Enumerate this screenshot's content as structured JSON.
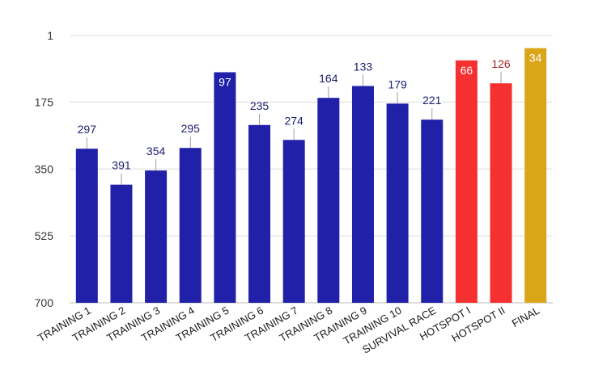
{
  "chart_data": {
    "type": "bar",
    "title": "",
    "xlabel": "",
    "ylabel": "",
    "y_inverted": true,
    "ylim": [
      1,
      700
    ],
    "y_ticks": [
      "1",
      "175",
      "350",
      "525",
      "700"
    ],
    "y_tick_values": [
      1,
      175,
      350,
      525,
      700
    ],
    "grid": true,
    "categories": [
      "TRAINING 1",
      "TRAINING 2",
      "TRAINING 3",
      "TRAINING 4",
      "TRAINING 5",
      "TRAINING 6",
      "TRAINING 7",
      "TRAINING 8",
      "TRAINING 9",
      "TRAINING 10",
      "SURVIVAL RACE",
      "HOTSPOT I",
      "HOTSPOT II",
      "FINAL"
    ],
    "values": [
      297,
      391,
      354,
      295,
      97,
      235,
      274,
      164,
      133,
      179,
      221,
      66,
      126,
      34
    ],
    "data_labels": [
      "297",
      "391",
      "354",
      "295",
      "97",
      "235",
      "274",
      "164",
      "133",
      "179",
      "221",
      "66",
      "126",
      "34"
    ],
    "colors": [
      "#2020a8",
      "#2020a8",
      "#2020a8",
      "#2020a8",
      "#2020a8",
      "#2020a8",
      "#2020a8",
      "#2020a8",
      "#2020a8",
      "#2020a8",
      "#2020a8",
      "#f43030",
      "#f43030",
      "#dba51a"
    ],
    "label_colors": [
      "#1c1c6e",
      "#1c1c6e",
      "#1c1c6e",
      "#1c1c6e",
      "#ffffff",
      "#1c1c6e",
      "#1c1c6e",
      "#1c1c6e",
      "#1c1c6e",
      "#1c1c6e",
      "#1c1c6e",
      "#ffffff",
      "#a52a2a",
      "#ffffff"
    ],
    "label_inside": [
      false,
      false,
      false,
      false,
      true,
      false,
      false,
      false,
      false,
      false,
      false,
      true,
      false,
      true
    ]
  }
}
